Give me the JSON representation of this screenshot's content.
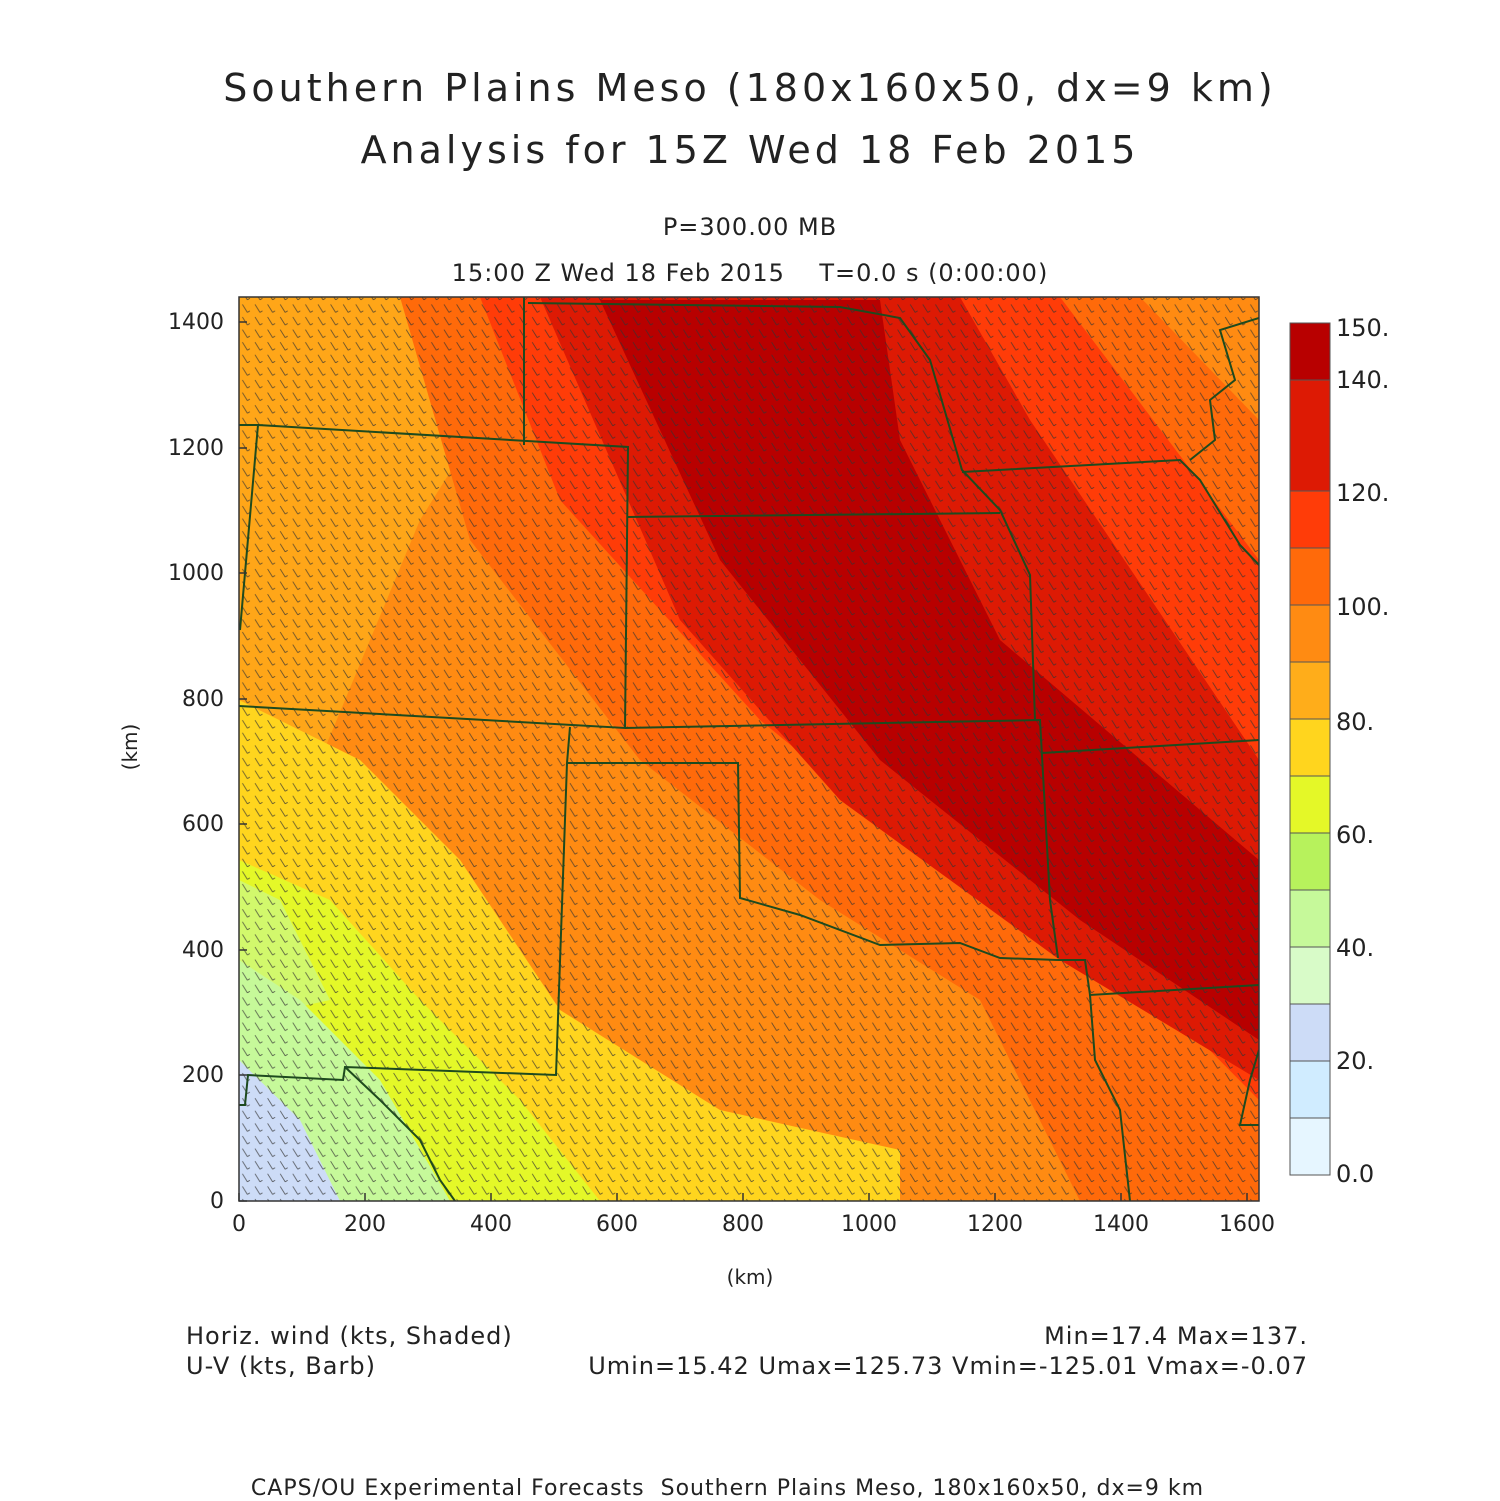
{
  "title": {
    "line1": "Southern Plains Meso (180x160x50, dx=9 km)",
    "line2": "Analysis for 15Z Wed 18 Feb 2015"
  },
  "subtitle": {
    "level": "P=300.00 MB",
    "time": "15:00 Z Wed 18 Feb 2015    T=0.0 s (0:00:00)"
  },
  "axes": {
    "xlabel": "(km)",
    "ylabel": "(km)",
    "xlim": [
      0,
      1620
    ],
    "ylim": [
      0,
      1440
    ],
    "xticks": [
      "0",
      "200",
      "400",
      "600",
      "800",
      "1000",
      "1200",
      "1400",
      "1600"
    ],
    "yticks": [
      "0",
      "200",
      "400",
      "600",
      "800",
      "1000",
      "1200",
      "1400"
    ]
  },
  "colorbar": {
    "colors": [
      "#e6f6ff",
      "#d0ecff",
      "#cddcf7",
      "#d8fbc8",
      "#c6f99a",
      "#b7f25c",
      "#e4f828",
      "#ffd51e",
      "#ffad1a",
      "#ff8b12",
      "#ff6a0a",
      "#ff3c08",
      "#dd1a04",
      "#b80000"
    ],
    "labels": [
      "0.0",
      "20.",
      "40.",
      "60.",
      "80.",
      "100.",
      "120.",
      "140.",
      "150."
    ]
  },
  "legend": {
    "field1": "Horiz. wind (kts, Shaded)",
    "field2": "U-V (kts, Barb)",
    "minmax": "Min=17.4 Max=137.",
    "uvstats": "Umin=15.42 Umax=125.73 Vmin=-125.01 Vmax=-0.07"
  },
  "footer": "CAPS/OU Experimental Forecasts  Southern Plains Meso, 180x160x50, dx=9 km"
}
